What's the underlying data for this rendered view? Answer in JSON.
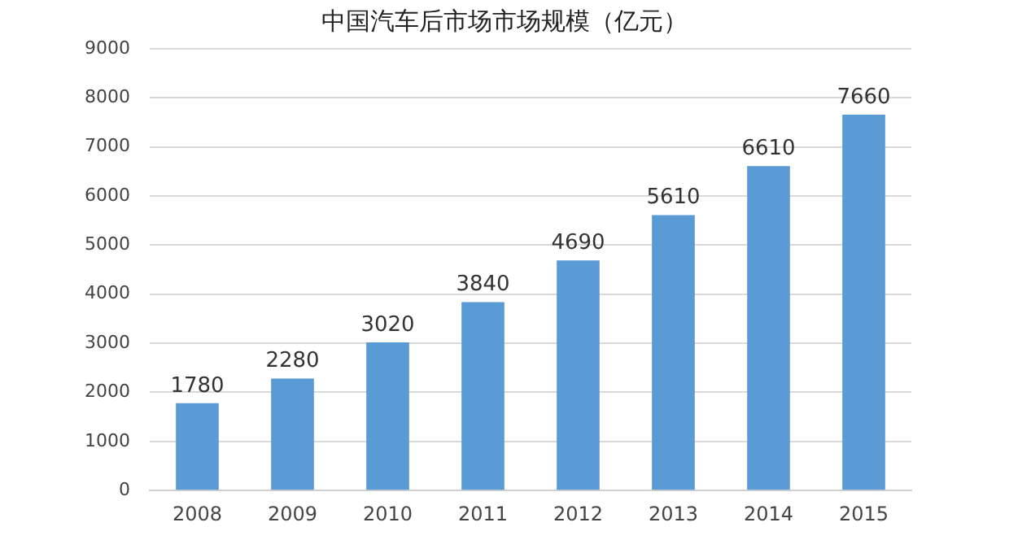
{
  "chart_data": {
    "type": "bar",
    "title": "中国汽车后市场市场规模（亿元）",
    "categories": [
      "2008",
      "2009",
      "2010",
      "2011",
      "2012",
      "2013",
      "2014",
      "2015"
    ],
    "values": [
      1780,
      2280,
      3020,
      3840,
      4690,
      5610,
      6610,
      7660
    ],
    "color": "#5b9bd5",
    "ylim": [
      0,
      9000
    ],
    "yticks": [
      0,
      1000,
      2000,
      3000,
      4000,
      5000,
      6000,
      7000,
      8000,
      9000
    ],
    "grid": "y",
    "data_labels": true
  }
}
